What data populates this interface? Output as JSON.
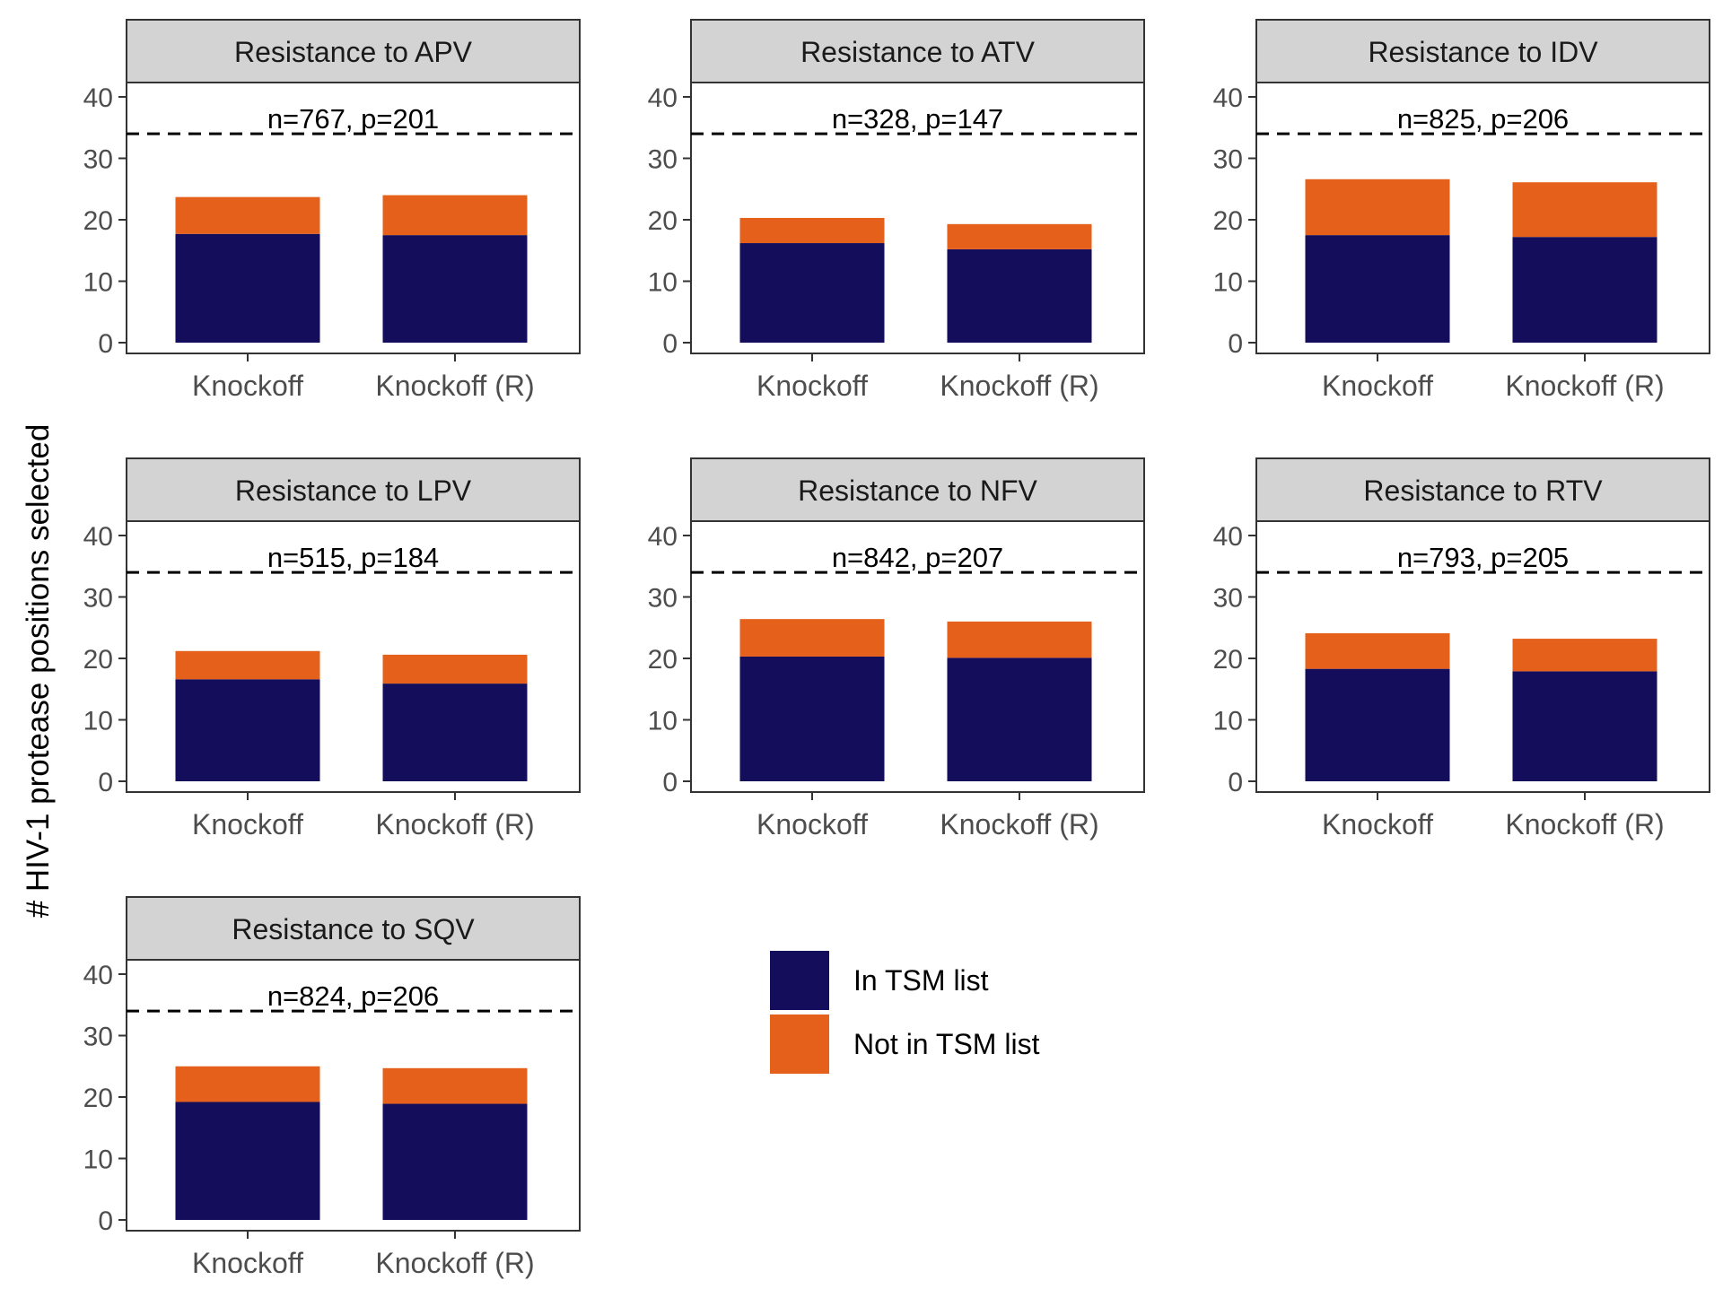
{
  "ylabel": "# HIV-1 protease positions selected",
  "legend": {
    "placement": "bottom-middle",
    "items": [
      {
        "label": "In TSM list",
        "color": "#130d5c"
      },
      {
        "label": "Not in TSM list",
        "color": "#e5601a"
      }
    ]
  },
  "colors": {
    "in_tsm": "#130d5c",
    "not_in_tsm": "#e5601a",
    "strip_fill": "#d3d3d3",
    "dashed_line": "#000000"
  },
  "chart_data": {
    "type": "bar",
    "stacked": true,
    "categories": [
      "Knockoff",
      "Knockoff (R)"
    ],
    "ylim": [
      0,
      40
    ],
    "yticks": [
      0,
      10,
      20,
      30,
      40
    ],
    "grid": false,
    "reference_line": 34,
    "panels": [
      {
        "title": "Resistance to APV",
        "annotation": "n=767, p=201",
        "series": [
          {
            "name": "In TSM list",
            "values": [
              17.7,
              17.5
            ]
          },
          {
            "name": "Not in TSM list",
            "values": [
              6.0,
              6.5
            ]
          }
        ]
      },
      {
        "title": "Resistance to ATV",
        "annotation": "n=328, p=147",
        "series": [
          {
            "name": "In TSM list",
            "values": [
              16.2,
              15.2
            ]
          },
          {
            "name": "Not in TSM list",
            "values": [
              4.1,
              4.1
            ]
          }
        ]
      },
      {
        "title": "Resistance to IDV",
        "annotation": "n=825, p=206",
        "series": [
          {
            "name": "In TSM list",
            "values": [
              17.5,
              17.2
            ]
          },
          {
            "name": "Not in TSM list",
            "values": [
              9.1,
              8.9
            ]
          }
        ]
      },
      {
        "title": "Resistance to LPV",
        "annotation": "n=515, p=184",
        "series": [
          {
            "name": "In TSM list",
            "values": [
              16.6,
              15.9
            ]
          },
          {
            "name": "Not in TSM list",
            "values": [
              4.6,
              4.7
            ]
          }
        ]
      },
      {
        "title": "Resistance to NFV",
        "annotation": "n=842, p=207",
        "series": [
          {
            "name": "In TSM list",
            "values": [
              20.3,
              20.1
            ]
          },
          {
            "name": "Not in TSM list",
            "values": [
              6.1,
              5.9
            ]
          }
        ]
      },
      {
        "title": "Resistance to RTV",
        "annotation": "n=793, p=205",
        "series": [
          {
            "name": "In TSM list",
            "values": [
              18.3,
              17.9
            ]
          },
          {
            "name": "Not in TSM list",
            "values": [
              5.8,
              5.3
            ]
          }
        ]
      },
      {
        "title": "Resistance to SQV",
        "annotation": "n=824, p=206",
        "series": [
          {
            "name": "In TSM list",
            "values": [
              19.2,
              18.9
            ]
          },
          {
            "name": "Not in TSM list",
            "values": [
              5.8,
              5.8
            ]
          }
        ]
      }
    ]
  }
}
